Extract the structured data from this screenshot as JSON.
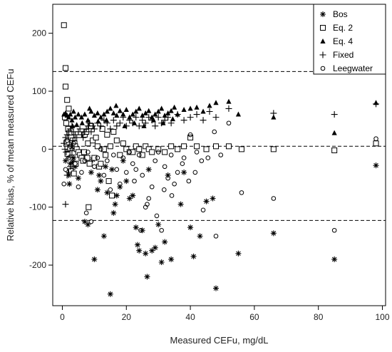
{
  "chart_data": {
    "type": "scatter",
    "title": "",
    "xlabel": "Measured CEFu, mg/dL",
    "ylabel": "Relative bias, % of mean measured CEFu",
    "xlim": [
      -3,
      101
    ],
    "ylim": [
      -270,
      250
    ],
    "x_ticks": [
      0,
      20,
      40,
      60,
      80,
      100
    ],
    "y_ticks": [
      -200,
      -100,
      0,
      100,
      200
    ],
    "x_tick_labels": [
      "0",
      "20",
      "40",
      "60",
      "80",
      "100"
    ],
    "y_tick_labels": [
      "-200",
      "-100",
      "0",
      "100",
      "200"
    ],
    "grid": false,
    "legend_position": "top-right",
    "reference_lines": [
      134,
      5,
      -123
    ],
    "series": [
      {
        "name": "Bos",
        "marker": "asterisk",
        "points": [
          [
            1,
            -20
          ],
          [
            1.5,
            -8
          ],
          [
            2,
            -45
          ],
          [
            2.5,
            -25
          ],
          [
            3,
            -35
          ],
          [
            3.5,
            -15
          ],
          [
            4,
            -30
          ],
          [
            5,
            -50
          ],
          [
            7,
            -125
          ],
          [
            8,
            -130
          ],
          [
            9,
            -40
          ],
          [
            10,
            -190
          ],
          [
            11,
            -70
          ],
          [
            12,
            -55
          ],
          [
            13,
            -150
          ],
          [
            14,
            -75
          ],
          [
            15,
            -250
          ],
          [
            15.5,
            -35
          ],
          [
            16,
            -110
          ],
          [
            16.5,
            -95
          ],
          [
            17,
            -80
          ],
          [
            18,
            -65
          ],
          [
            19,
            -20
          ],
          [
            20,
            -55
          ],
          [
            21,
            -85
          ],
          [
            22,
            -80
          ],
          [
            23,
            -135
          ],
          [
            23.5,
            -165
          ],
          [
            24,
            -175
          ],
          [
            25,
            -140
          ],
          [
            26,
            -180
          ],
          [
            26.5,
            -220
          ],
          [
            27,
            -35
          ],
          [
            28,
            -175
          ],
          [
            29,
            -170
          ],
          [
            30,
            -130
          ],
          [
            31,
            -195
          ],
          [
            32,
            -160
          ],
          [
            33,
            -45
          ],
          [
            34,
            -190
          ],
          [
            37,
            -95
          ],
          [
            38,
            -40
          ],
          [
            40,
            -135
          ],
          [
            41,
            -185
          ],
          [
            43,
            -150
          ],
          [
            45,
            -90
          ],
          [
            47,
            -85
          ],
          [
            48,
            -240
          ],
          [
            55,
            -180
          ],
          [
            66,
            -145
          ],
          [
            85,
            -190
          ],
          [
            98,
            -28
          ],
          [
            1.8,
            -12
          ],
          [
            2.2,
            -60
          ],
          [
            3.2,
            -22
          ],
          [
            9.5,
            -18
          ],
          [
            11.5,
            -45
          ],
          [
            13.5,
            -30
          ]
        ]
      },
      {
        "name": "Eq. 2",
        "marker": "open-square",
        "points": [
          [
            0.5,
            214
          ],
          [
            1,
            140
          ],
          [
            1,
            108
          ],
          [
            1.5,
            85
          ],
          [
            2,
            70
          ],
          [
            0.8,
            55
          ],
          [
            1.2,
            45
          ],
          [
            1.8,
            35
          ],
          [
            2.2,
            28
          ],
          [
            2.8,
            20
          ],
          [
            3.2,
            15
          ],
          [
            3.8,
            10
          ],
          [
            4,
            5
          ],
          [
            4.5,
            0
          ],
          [
            5,
            -5
          ],
          [
            5.5,
            -10
          ],
          [
            6,
            -15
          ],
          [
            6.5,
            -20
          ],
          [
            7,
            25
          ],
          [
            7.5,
            30
          ],
          [
            8,
            10
          ],
          [
            8.5,
            -25
          ],
          [
            9,
            40
          ],
          [
            9.5,
            15
          ],
          [
            10,
            -15
          ],
          [
            10.5,
            20
          ],
          [
            11,
            5
          ],
          [
            11.5,
            -30
          ],
          [
            12,
            -25
          ],
          [
            12.5,
            35
          ],
          [
            13,
            0
          ],
          [
            13.5,
            -10
          ],
          [
            14,
            25
          ],
          [
            14.5,
            -55
          ],
          [
            15,
            5
          ],
          [
            15.5,
            -80
          ],
          [
            16,
            30
          ],
          [
            17,
            15
          ],
          [
            18,
            -10
          ],
          [
            19,
            10
          ],
          [
            20,
            0
          ],
          [
            21,
            -5
          ],
          [
            22,
            -5
          ],
          [
            23,
            5
          ],
          [
            24,
            0
          ],
          [
            25,
            -10
          ],
          [
            26,
            5
          ],
          [
            27,
            0
          ],
          [
            28,
            -5
          ],
          [
            30,
            0
          ],
          [
            32,
            -5
          ],
          [
            34,
            5
          ],
          [
            36,
            0
          ],
          [
            38,
            5
          ],
          [
            40,
            20
          ],
          [
            42,
            5
          ],
          [
            45,
            0
          ],
          [
            48,
            5
          ],
          [
            52,
            5
          ],
          [
            56,
            0
          ],
          [
            66,
            0
          ],
          [
            85,
            -2
          ],
          [
            98,
            10
          ],
          [
            8.2,
            -100
          ],
          [
            2.6,
            -38
          ],
          [
            3.6,
            -42
          ],
          [
            4.2,
            -25
          ],
          [
            6.8,
            -5
          ],
          [
            7.8,
            -15
          ],
          [
            1.4,
            12
          ],
          [
            1.6,
            -8
          ],
          [
            2.4,
            2
          ]
        ]
      },
      {
        "name": "Eq. 4",
        "marker": "filled-triangle",
        "points": [
          [
            0.5,
            60
          ],
          [
            1,
            62
          ],
          [
            1.5,
            58
          ],
          [
            2,
            55
          ],
          [
            2.5,
            60
          ],
          [
            3,
            50
          ],
          [
            3.5,
            65
          ],
          [
            4,
            55
          ],
          [
            5,
            60
          ],
          [
            6,
            55
          ],
          [
            7,
            60
          ],
          [
            8,
            50
          ],
          [
            9,
            65
          ],
          [
            10,
            58
          ],
          [
            11,
            62
          ],
          [
            12,
            55
          ],
          [
            13,
            60
          ],
          [
            14,
            65
          ],
          [
            15,
            70
          ],
          [
            16,
            62
          ],
          [
            17,
            58
          ],
          [
            18,
            66
          ],
          [
            19,
            60
          ],
          [
            20,
            68
          ],
          [
            21,
            55
          ],
          [
            22,
            60
          ],
          [
            23,
            65
          ],
          [
            24,
            70
          ],
          [
            25,
            58
          ],
          [
            26,
            62
          ],
          [
            27,
            66
          ],
          [
            28,
            55
          ],
          [
            29,
            60
          ],
          [
            30,
            65
          ],
          [
            31,
            70
          ],
          [
            32,
            58
          ],
          [
            33,
            62
          ],
          [
            34,
            66
          ],
          [
            35,
            72
          ],
          [
            36,
            60
          ],
          [
            38,
            68
          ],
          [
            40,
            70
          ],
          [
            42,
            72
          ],
          [
            44,
            65
          ],
          [
            46,
            75
          ],
          [
            48,
            80
          ],
          [
            52,
            82
          ],
          [
            55,
            60
          ],
          [
            66,
            55
          ],
          [
            85,
            28
          ],
          [
            98,
            80
          ],
          [
            3.2,
            40
          ],
          [
            4.5,
            42
          ],
          [
            6.2,
            45
          ],
          [
            8.5,
            70
          ],
          [
            11.2,
            48
          ],
          [
            13.8,
            50
          ],
          [
            16.8,
            75
          ],
          [
            19.5,
            40
          ],
          [
            22.5,
            45
          ],
          [
            25.5,
            40
          ],
          [
            28.5,
            50
          ],
          [
            31.5,
            45
          ],
          [
            34.5,
            52
          ]
        ]
      },
      {
        "name": "Fixed",
        "marker": "plus",
        "points": [
          [
            1,
            -95
          ],
          [
            1.5,
            -45
          ],
          [
            2,
            -40
          ],
          [
            2.5,
            -30
          ],
          [
            3,
            -10
          ],
          [
            0.5,
            10
          ],
          [
            1,
            20
          ],
          [
            1.5,
            25
          ],
          [
            2,
            30
          ],
          [
            2.5,
            35
          ],
          [
            3,
            40
          ],
          [
            3.5,
            30
          ],
          [
            4,
            25
          ],
          [
            4.5,
            20
          ],
          [
            5,
            30
          ],
          [
            5.5,
            35
          ],
          [
            6,
            25
          ],
          [
            6.5,
            20
          ],
          [
            7,
            30
          ],
          [
            7.5,
            35
          ],
          [
            8,
            40
          ],
          [
            8.5,
            45
          ],
          [
            9,
            30
          ],
          [
            9.5,
            40
          ],
          [
            10,
            35
          ],
          [
            11,
            45
          ],
          [
            12,
            40
          ],
          [
            13,
            50
          ],
          [
            14,
            45
          ],
          [
            15,
            35
          ],
          [
            16,
            50
          ],
          [
            17,
            40
          ],
          [
            18,
            45
          ],
          [
            19,
            55
          ],
          [
            20,
            40
          ],
          [
            21,
            50
          ],
          [
            22,
            45
          ],
          [
            23,
            55
          ],
          [
            24,
            40
          ],
          [
            25,
            50
          ],
          [
            26,
            45
          ],
          [
            27,
            55
          ],
          [
            28,
            50
          ],
          [
            29,
            40
          ],
          [
            30,
            55
          ],
          [
            31,
            45
          ],
          [
            32,
            50
          ],
          [
            33,
            55
          ],
          [
            34,
            45
          ],
          [
            36,
            60
          ],
          [
            38,
            50
          ],
          [
            40,
            55
          ],
          [
            42,
            60
          ],
          [
            44,
            50
          ],
          [
            46,
            65
          ],
          [
            48,
            55
          ],
          [
            52,
            70
          ],
          [
            66,
            62
          ],
          [
            85,
            60
          ],
          [
            98,
            78
          ],
          [
            1.2,
            -5
          ],
          [
            0.8,
            0
          ],
          [
            2.8,
            5
          ],
          [
            3.3,
            15
          ]
        ]
      },
      {
        "name": "Leegwater",
        "marker": "open-circle",
        "points": [
          [
            0.5,
            -60
          ],
          [
            1,
            -35
          ],
          [
            1.5,
            15
          ],
          [
            2,
            -15
          ],
          [
            2.5,
            5
          ],
          [
            3,
            0
          ],
          [
            3.5,
            10
          ],
          [
            4,
            -25
          ],
          [
            5,
            -65
          ],
          [
            6,
            -40
          ],
          [
            7,
            -20
          ],
          [
            8,
            -5
          ],
          [
            9,
            -125
          ],
          [
            10,
            -30
          ],
          [
            11,
            -15
          ],
          [
            12,
            0
          ],
          [
            13,
            -45
          ],
          [
            14,
            -20
          ],
          [
            15,
            -70
          ],
          [
            16,
            -10
          ],
          [
            17,
            -35
          ],
          [
            18,
            -60
          ],
          [
            19,
            -15
          ],
          [
            20,
            -40
          ],
          [
            21,
            -5
          ],
          [
            22,
            -25
          ],
          [
            23,
            -35
          ],
          [
            24,
            -10
          ],
          [
            25,
            -45
          ],
          [
            26,
            -100
          ],
          [
            27,
            -85
          ],
          [
            28,
            -65
          ],
          [
            29,
            -20
          ],
          [
            30,
            -5
          ],
          [
            31,
            -140
          ],
          [
            32,
            -30
          ],
          [
            33,
            -50
          ],
          [
            34,
            -10
          ],
          [
            35,
            -60
          ],
          [
            36,
            -40
          ],
          [
            38,
            -15
          ],
          [
            40,
            25
          ],
          [
            42,
            -5
          ],
          [
            44,
            -105
          ],
          [
            48,
            -150
          ],
          [
            52,
            45
          ],
          [
            56,
            -75
          ],
          [
            66,
            -85
          ],
          [
            85,
            -140
          ],
          [
            98,
            18
          ],
          [
            22.5,
            -55
          ],
          [
            24.5,
            -140
          ],
          [
            26.5,
            -95
          ],
          [
            29.5,
            -115
          ],
          [
            31.8,
            -70
          ],
          [
            34.2,
            -80
          ],
          [
            37.5,
            -25
          ],
          [
            39.5,
            -55
          ],
          [
            41.5,
            -40
          ],
          [
            43.5,
            -20
          ],
          [
            45.5,
            -15
          ],
          [
            47.5,
            30
          ],
          [
            49.5,
            -10
          ],
          [
            7.5,
            -110
          ]
        ]
      }
    ]
  }
}
